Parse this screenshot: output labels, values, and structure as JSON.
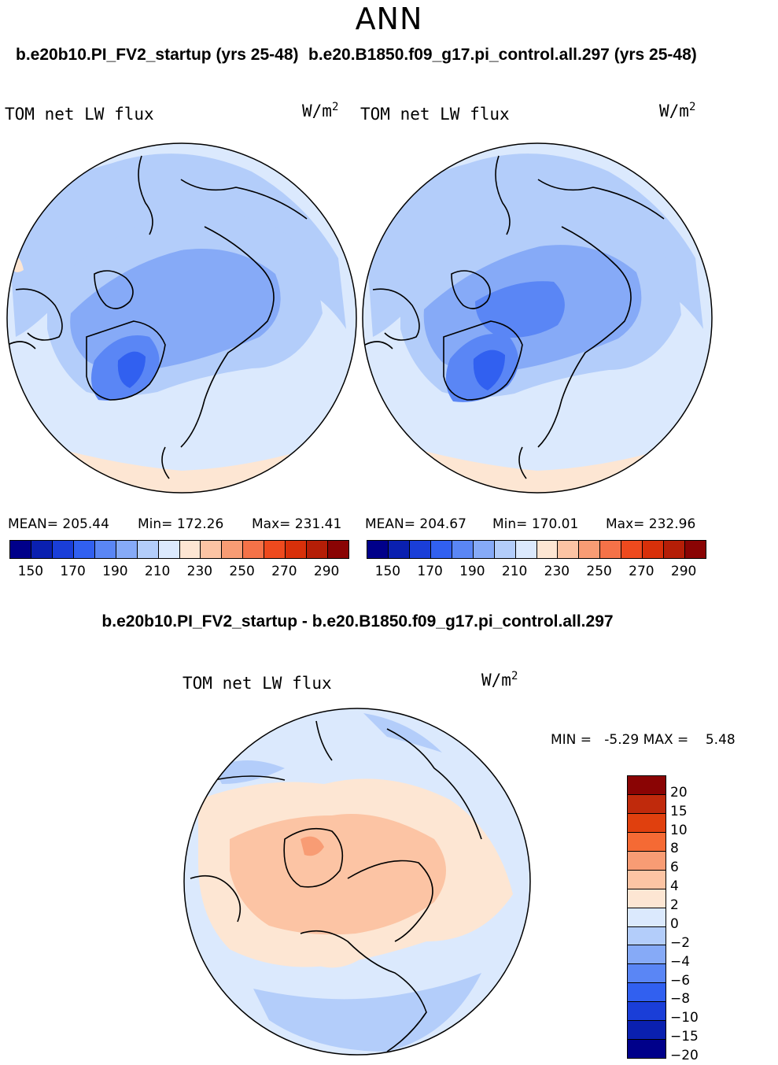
{
  "page": {
    "title": "ANN",
    "case_a_title": "b.e20b10.PI_FV2_startup (yrs 25-48)",
    "case_b_title": "b.e20.B1850.f09_g17.pi_control.all.297 (yrs 25-48)",
    "diff_title": "b.e20b10.PI_FV2_startup - b.e20.B1850.f09_g17.pi_control.all.297"
  },
  "panels": [
    {
      "label": "TOM net LW flux",
      "units": "W/m",
      "units_exp": "2",
      "mean_text": "MEAN= 205.44",
      "min_text": "Min= 172.26",
      "max_text": "Max= 231.41"
    },
    {
      "label": "TOM net LW flux",
      "units": "W/m",
      "units_exp": "2",
      "mean_text": "MEAN= 204.67",
      "min_text": "Min= 170.01",
      "max_text": "Max= 232.96"
    },
    {
      "label": "TOM net LW flux",
      "units": "W/m",
      "units_exp": "2",
      "minmax_text": "MIN =   -5.29 MAX =    5.48"
    }
  ],
  "colorbar_abs": {
    "colors": [
      "#00008a",
      "#0a20b0",
      "#1a3ed8",
      "#3160f0",
      "#5a86f5",
      "#86aaf7",
      "#b3cdfa",
      "#dbe9fd",
      "#fde6d3",
      "#fcc4a4",
      "#f89c74",
      "#f57248",
      "#ee4a1e",
      "#d8300a",
      "#b51e07",
      "#8a0404"
    ],
    "tick_labels": [
      "150",
      "170",
      "190",
      "210",
      "230",
      "250",
      "270",
      "290"
    ]
  },
  "colorbar_diff": {
    "colors": [
      "#8a0404",
      "#c02a0c",
      "#e0400e",
      "#f56a34",
      "#f89c74",
      "#fcc4a4",
      "#fde6d3",
      "#dbe9fd",
      "#b3cdfa",
      "#86aaf7",
      "#5a86f5",
      "#3160f0",
      "#1a3ed8",
      "#0a20b0",
      "#00008a"
    ],
    "tick_labels": [
      "20",
      "15",
      "10",
      "8",
      "6",
      "4",
      "2",
      "0",
      "−2",
      "−4",
      "−6",
      "−8",
      "−10",
      "−15",
      "−20"
    ]
  },
  "map_fill_colors": {
    "light_blue": "#dbe9fd",
    "blue_1": "#b3cdfa",
    "blue_2": "#86aaf7",
    "blue_3": "#5a86f5",
    "blue_4": "#3160f0",
    "peach": "#fde6d3",
    "salmon": "#fcc4a4",
    "orange": "#f89c74"
  }
}
